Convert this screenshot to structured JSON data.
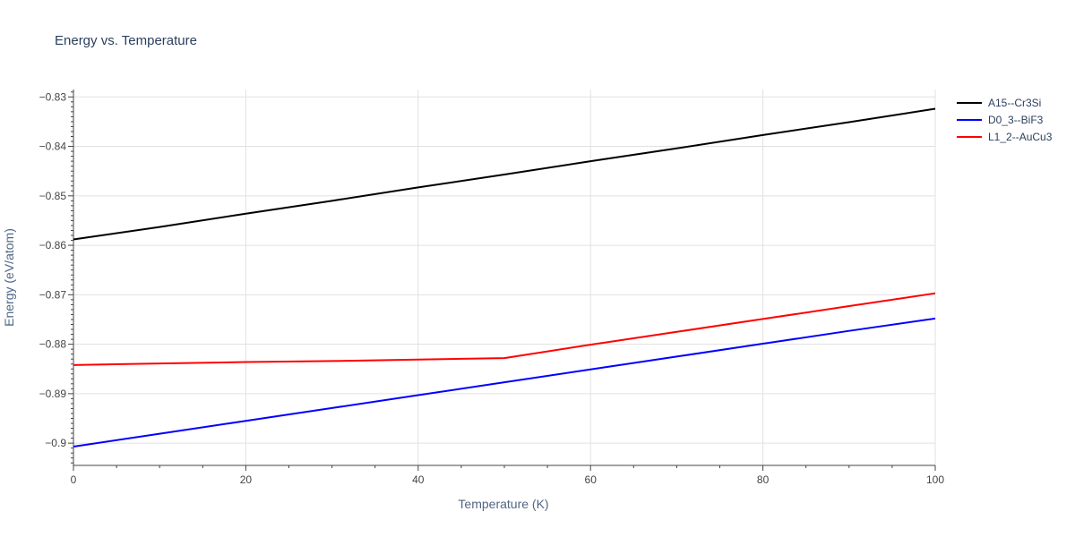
{
  "chart_data": {
    "type": "line",
    "title": "Energy vs. Temperature",
    "xlabel": "Temperature (K)",
    "ylabel": "Energy (eV/atom)",
    "xlim": [
      0,
      100
    ],
    "ylim": [
      -0.9045,
      -0.8285
    ],
    "x_ticks": [
      0,
      20,
      40,
      60,
      80,
      100
    ],
    "y_ticks": [
      -0.83,
      -0.84,
      -0.85,
      -0.86,
      -0.87,
      -0.88,
      -0.89,
      -0.9
    ],
    "y_tick_labels": [
      "−0.83",
      "−0.84",
      "−0.85",
      "−0.86",
      "−0.87",
      "−0.88",
      "−0.89",
      "−0.9"
    ],
    "grid": true,
    "legend_position": "top-right",
    "series": [
      {
        "name": "A15--Cr3Si",
        "color": "#000000",
        "x": [
          0,
          10,
          20,
          30,
          40,
          50,
          60,
          70,
          80,
          90,
          100
        ],
        "y": [
          -0.8588,
          -0.8563,
          -0.8536,
          -0.851,
          -0.8483,
          -0.8457,
          -0.843,
          -0.8404,
          -0.8377,
          -0.8351,
          -0.8324
        ]
      },
      {
        "name": "D0_3--BiF3",
        "color": "#0000ff",
        "x": [
          0,
          10,
          20,
          30,
          40,
          50,
          60,
          70,
          80,
          90,
          100
        ],
        "y": [
          -0.9007,
          -0.8981,
          -0.8955,
          -0.8929,
          -0.8903,
          -0.8877,
          -0.8851,
          -0.8825,
          -0.8799,
          -0.8773,
          -0.8748
        ]
      },
      {
        "name": "L1_2--AuCu3",
        "color": "#ff0000",
        "x": [
          0,
          10,
          20,
          30,
          40,
          50,
          60,
          70,
          80,
          90,
          100
        ],
        "y": [
          -0.8842,
          -0.8839,
          -0.8836,
          -0.8834,
          -0.8831,
          -0.8828,
          -0.8801,
          -0.8775,
          -0.8749,
          -0.8723,
          -0.8697
        ]
      }
    ]
  }
}
